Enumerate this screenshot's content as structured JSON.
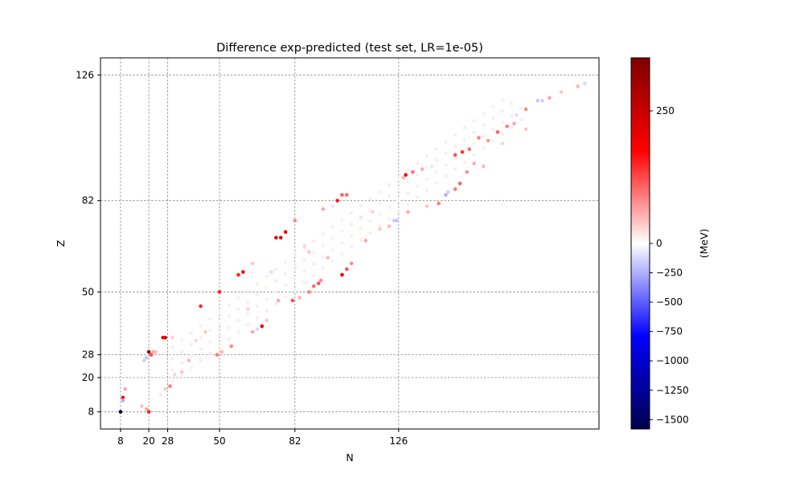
{
  "chart_data": {
    "type": "scatter",
    "title": "Difference exp-predicted (test set, LR=1e-05)",
    "xlabel": "N",
    "ylabel": "Z",
    "xlim": [
      -0.5,
      211
    ],
    "ylim": [
      2,
      132
    ],
    "x_ticks": [
      8,
      20,
      28,
      50,
      82,
      126
    ],
    "y_ticks": [
      8,
      20,
      28,
      50,
      82,
      126
    ],
    "grid": "dashed gray at magic numbers",
    "colormap": "seismic",
    "colorbar": {
      "label": "(MeV)",
      "range": [
        -1580,
        350
      ],
      "ticks": [
        -1500,
        -1250,
        -1000,
        -750,
        -500,
        -250,
        0,
        250
      ],
      "tick_labels": [
        "−1500",
        "−1250",
        "−1000",
        "−750",
        "−500",
        "−250",
        "0",
        "250"
      ]
    },
    "points": [
      {
        "n": 8,
        "z": 8,
        "v": -1550
      },
      {
        "n": 9,
        "z": 13,
        "v": 180
      },
      {
        "n": 9,
        "z": 12,
        "v": -250
      },
      {
        "n": 10,
        "z": 16,
        "v": 60
      },
      {
        "n": 19,
        "z": 9,
        "v": 60
      },
      {
        "n": 20,
        "z": 8,
        "v": 150
      },
      {
        "n": 17,
        "z": 10,
        "v": 40
      },
      {
        "n": 20,
        "z": 29,
        "v": 320
      },
      {
        "n": 19,
        "z": 27,
        "v": -180
      },
      {
        "n": 18,
        "z": 26,
        "v": -150
      },
      {
        "n": 21,
        "z": 28,
        "v": 120
      },
      {
        "n": 22,
        "z": 29,
        "v": 60
      },
      {
        "n": 23,
        "z": 29,
        "v": 40
      },
      {
        "n": 26,
        "z": 34,
        "v": 200
      },
      {
        "n": 27,
        "z": 34,
        "v": 220
      },
      {
        "n": 30,
        "z": 34,
        "v": 30
      },
      {
        "n": 25,
        "z": 14,
        "v": -60
      },
      {
        "n": 27,
        "z": 16,
        "v": 40
      },
      {
        "n": 29,
        "z": 17,
        "v": 90
      },
      {
        "n": 31,
        "z": 21,
        "v": 30
      },
      {
        "n": 34,
        "z": 22,
        "v": 40
      },
      {
        "n": 37,
        "z": 26,
        "v": 50
      },
      {
        "n": 42,
        "z": 45,
        "v": 150
      },
      {
        "n": 40,
        "z": 33,
        "v": 30
      },
      {
        "n": 44,
        "z": 36,
        "v": 40
      },
      {
        "n": 50,
        "z": 50,
        "v": 150
      },
      {
        "n": 49,
        "z": 28,
        "v": 90
      },
      {
        "n": 51,
        "z": 29,
        "v": 50
      },
      {
        "n": 55,
        "z": 31,
        "v": 80
      },
      {
        "n": 58,
        "z": 56,
        "v": 150
      },
      {
        "n": 60,
        "z": 57,
        "v": 170
      },
      {
        "n": 64,
        "z": 60,
        "v": 40
      },
      {
        "n": 68,
        "z": 38,
        "v": 200
      },
      {
        "n": 66,
        "z": 37,
        "v": -120
      },
      {
        "n": 64,
        "z": 36,
        "v": 60
      },
      {
        "n": 70,
        "z": 40,
        "v": 40
      },
      {
        "n": 75,
        "z": 47,
        "v": 60
      },
      {
        "n": 74,
        "z": 69,
        "v": 200
      },
      {
        "n": 76,
        "z": 69,
        "v": 220
      },
      {
        "n": 78,
        "z": 71,
        "v": 190
      },
      {
        "n": 82,
        "z": 75,
        "v": 80
      },
      {
        "n": 81,
        "z": 47,
        "v": 120
      },
      {
        "n": 84,
        "z": 48,
        "v": 50
      },
      {
        "n": 88,
        "z": 50,
        "v": 90
      },
      {
        "n": 90,
        "z": 52,
        "v": 100
      },
      {
        "n": 92,
        "z": 53,
        "v": 120
      },
      {
        "n": 93,
        "z": 54,
        "v": 80
      },
      {
        "n": 88,
        "z": 64,
        "v": 40
      },
      {
        "n": 96,
        "z": 62,
        "v": 50
      },
      {
        "n": 100,
        "z": 82,
        "v": 160
      },
      {
        "n": 102,
        "z": 84,
        "v": 110
      },
      {
        "n": 104,
        "z": 84,
        "v": 100
      },
      {
        "n": 98,
        "z": 80,
        "v": -80
      },
      {
        "n": 94,
        "z": 79,
        "v": 60
      },
      {
        "n": 102,
        "z": 56,
        "v": 190
      },
      {
        "n": 104,
        "z": 58,
        "v": 120
      },
      {
        "n": 106,
        "z": 60,
        "v": 80
      },
      {
        "n": 112,
        "z": 68,
        "v": 60
      },
      {
        "n": 118,
        "z": 72,
        "v": 40
      },
      {
        "n": 122,
        "z": 73,
        "v": 50
      },
      {
        "n": 129,
        "z": 91,
        "v": 180
      },
      {
        "n": 132,
        "z": 92,
        "v": 100
      },
      {
        "n": 128,
        "z": 90,
        "v": 50
      },
      {
        "n": 140,
        "z": 94,
        "v": -60
      },
      {
        "n": 136,
        "z": 93,
        "v": 60
      },
      {
        "n": 125,
        "z": 75,
        "v": -200
      },
      {
        "n": 124,
        "z": 75,
        "v": -150
      },
      {
        "n": 130,
        "z": 78,
        "v": 60
      },
      {
        "n": 138,
        "z": 80,
        "v": 40
      },
      {
        "n": 143,
        "z": 81,
        "v": 90
      },
      {
        "n": 146,
        "z": 84,
        "v": -250
      },
      {
        "n": 147,
        "z": 85,
        "v": -150
      },
      {
        "n": 150,
        "z": 86,
        "v": 90
      },
      {
        "n": 152,
        "z": 88,
        "v": 110
      },
      {
        "n": 155,
        "z": 92,
        "v": 80
      },
      {
        "n": 158,
        "z": 95,
        "v": 60
      },
      {
        "n": 150,
        "z": 98,
        "v": 120
      },
      {
        "n": 153,
        "z": 99,
        "v": 140
      },
      {
        "n": 156,
        "z": 100,
        "v": 100
      },
      {
        "n": 160,
        "z": 104,
        "v": 90
      },
      {
        "n": 164,
        "z": 103,
        "v": 70
      },
      {
        "n": 168,
        "z": 106,
        "v": 110
      },
      {
        "n": 172,
        "z": 108,
        "v": 90
      },
      {
        "n": 175,
        "z": 109,
        "v": 60
      },
      {
        "n": 176,
        "z": 112,
        "v": -100
      },
      {
        "n": 180,
        "z": 114,
        "v": 80
      },
      {
        "n": 185,
        "z": 117,
        "v": -180
      },
      {
        "n": 187,
        "z": 117,
        "v": -150
      },
      {
        "n": 190,
        "z": 118,
        "v": 60
      },
      {
        "n": 195,
        "z": 120,
        "v": 40
      },
      {
        "n": 202,
        "z": 122,
        "v": 50
      },
      {
        "n": 205,
        "z": 123,
        "v": -120
      },
      {
        "n": 180,
        "z": 107,
        "v": 40
      },
      {
        "n": 170,
        "z": 102,
        "v": 30
      },
      {
        "n": 162,
        "z": 94,
        "v": 50
      },
      {
        "n": 115,
        "z": 78,
        "v": 30
      },
      {
        "n": 110,
        "z": 76,
        "v": 20
      },
      {
        "n": 86,
        "z": 66,
        "v": 30
      },
      {
        "n": 72,
        "z": 57,
        "v": 30
      },
      {
        "n": 62,
        "z": 44,
        "v": 30
      }
    ]
  }
}
